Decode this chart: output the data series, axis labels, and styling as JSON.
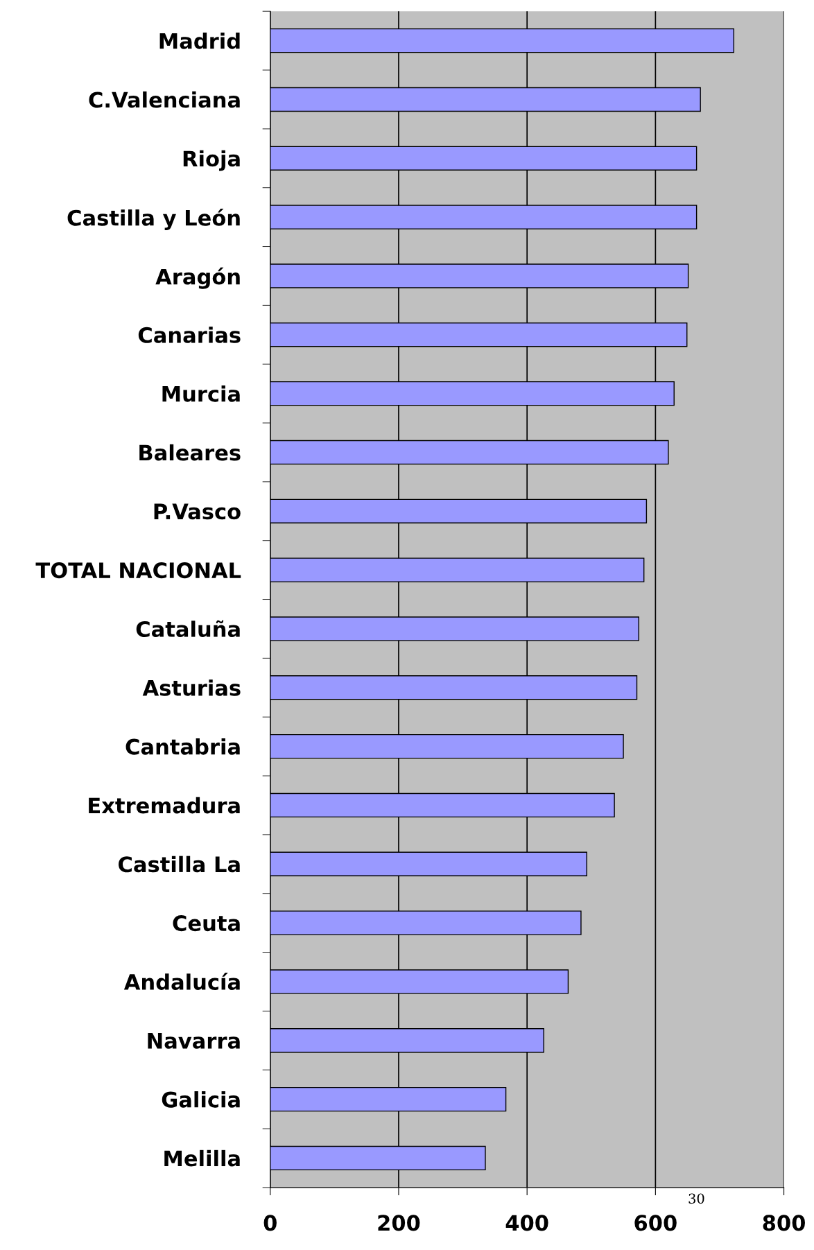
{
  "chart_data": {
    "type": "bar",
    "orientation": "horizontal",
    "categories": [
      "Madrid",
      "C.Valenciana",
      "Rioja",
      "Castilla y León",
      "Aragón",
      "Canarias",
      "Murcia",
      "Baleares",
      "P.Vasco",
      "TOTAL NACIONAL",
      "Cataluña",
      "Asturias",
      "Cantabria",
      "Extremadura",
      "Castilla La",
      "Ceuta",
      "Andalucía",
      "Navarra",
      "Galicia",
      "Melilla"
    ],
    "values": [
      722,
      670,
      664,
      664,
      651,
      649,
      629,
      620,
      586,
      582,
      574,
      571,
      550,
      536,
      493,
      484,
      464,
      426,
      367,
      335
    ],
    "color": "#9999ff",
    "xlim": [
      0,
      800
    ],
    "xticks": [
      0,
      200,
      400,
      600,
      800
    ],
    "grid": "x",
    "legend": false,
    "annotations": [
      "30"
    ]
  }
}
